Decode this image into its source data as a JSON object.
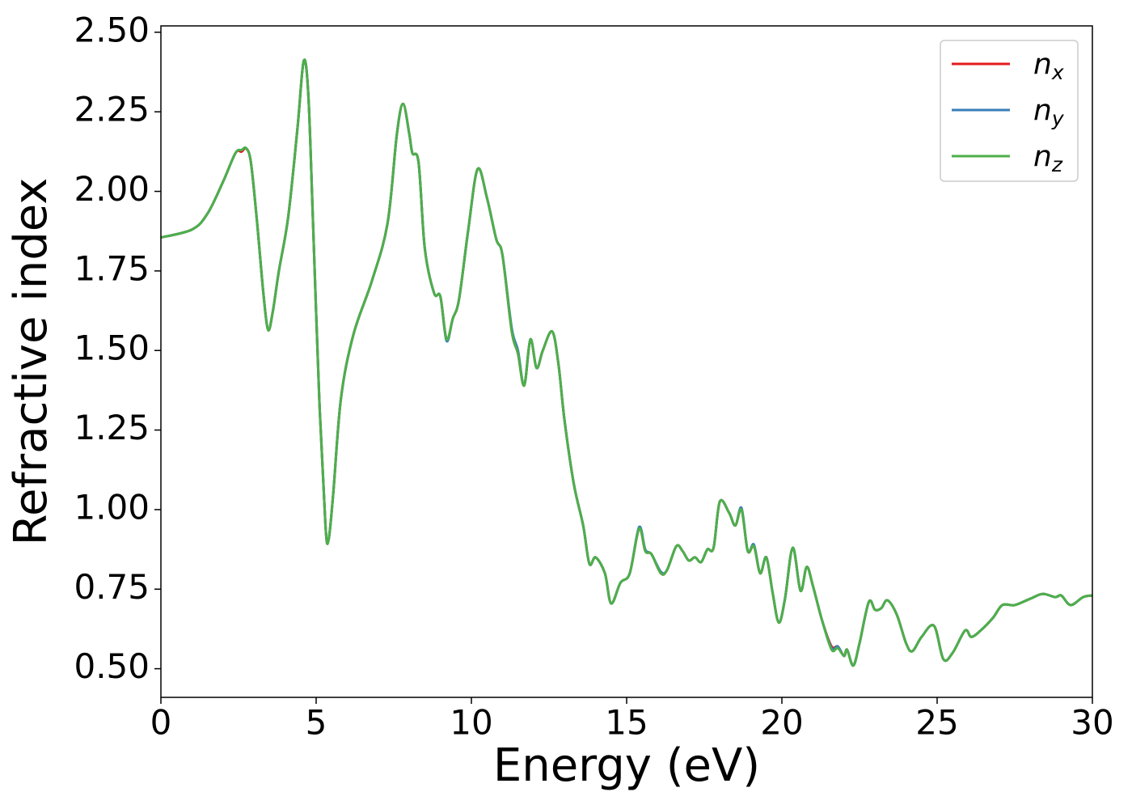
{
  "chart_data": {
    "type": "line",
    "xlabel": "Energy (eV)",
    "ylabel": "Refractive index",
    "x": [
      0,
      1,
      1.5,
      2,
      2.4,
      2.6,
      2.75,
      2.9,
      3.1,
      3.3,
      3.45,
      3.6,
      3.8,
      4.1,
      4.4,
      4.6,
      4.75,
      4.9,
      5.1,
      5.3,
      5.4,
      5.55,
      5.8,
      6.2,
      6.8,
      7.3,
      7.6,
      7.8,
      8,
      8.1,
      8.3,
      8.5,
      8.8,
      9,
      9.2,
      9.4,
      9.6,
      9.9,
      10.2,
      10.5,
      10.8,
      11,
      11.3,
      11.5,
      11.7,
      11.9,
      12.1,
      12.3,
      12.6,
      12.8,
      13,
      13.3,
      13.6,
      13.8,
      14,
      14.3,
      14.5,
      14.8,
      15.1,
      15.4,
      15.6,
      15.8,
      16.1,
      16.3,
      16.6,
      16.8,
      17,
      17.2,
      17.4,
      17.6,
      17.8,
      18,
      18.3,
      18.5,
      18.7,
      18.9,
      19.1,
      19.3,
      19.5,
      19.7,
      19.9,
      20.1,
      20.35,
      20.6,
      20.8,
      21,
      21.3,
      21.6,
      21.8,
      22,
      22.1,
      22.3,
      22.5,
      22.8,
      23,
      23.2,
      23.4,
      23.7,
      24,
      24.2,
      24.5,
      24.9,
      25.2,
      25.5,
      25.9,
      26.1,
      26.4,
      26.8,
      27.1,
      27.5,
      28,
      28.4,
      28.8,
      29,
      29.3,
      29.7,
      30
    ],
    "series": [
      {
        "name": "nx",
        "color": "#e41a1c",
        "values": [
          1.855,
          1.88,
          1.93,
          2.03,
          2.12,
          2.125,
          2.135,
          2.09,
          1.9,
          1.68,
          1.565,
          1.62,
          1.75,
          1.92,
          2.2,
          2.41,
          2.3,
          1.9,
          1.35,
          0.95,
          0.905,
          1.05,
          1.35,
          1.55,
          1.72,
          1.9,
          2.18,
          2.275,
          2.18,
          2.12,
          2.09,
          1.82,
          1.68,
          1.67,
          1.535,
          1.6,
          1.66,
          1.88,
          2.07,
          1.98,
          1.85,
          1.8,
          1.56,
          1.49,
          1.39,
          1.535,
          1.445,
          1.5,
          1.56,
          1.46,
          1.28,
          1.08,
          0.95,
          0.83,
          0.85,
          0.8,
          0.705,
          0.77,
          0.8,
          0.94,
          0.87,
          0.86,
          0.8,
          0.81,
          0.885,
          0.87,
          0.84,
          0.85,
          0.835,
          0.875,
          0.88,
          1.025,
          0.99,
          0.95,
          1.0,
          0.87,
          0.885,
          0.8,
          0.85,
          0.74,
          0.645,
          0.72,
          0.88,
          0.745,
          0.82,
          0.76,
          0.65,
          0.57,
          0.57,
          0.54,
          0.56,
          0.51,
          0.58,
          0.71,
          0.685,
          0.69,
          0.715,
          0.67,
          0.58,
          0.555,
          0.6,
          0.635,
          0.53,
          0.55,
          0.62,
          0.6,
          0.62,
          0.66,
          0.7,
          0.7,
          0.72,
          0.735,
          0.725,
          0.73,
          0.7,
          0.725,
          0.73
        ]
      },
      {
        "name": "ny",
        "color": "#377eb8",
        "values": [
          1.855,
          1.88,
          1.93,
          2.03,
          2.12,
          2.13,
          2.135,
          2.09,
          1.9,
          1.68,
          1.565,
          1.62,
          1.75,
          1.92,
          2.2,
          2.41,
          2.3,
          1.9,
          1.35,
          0.95,
          0.905,
          1.05,
          1.35,
          1.55,
          1.72,
          1.9,
          2.18,
          2.275,
          2.18,
          2.12,
          2.09,
          1.82,
          1.68,
          1.67,
          1.53,
          1.6,
          1.66,
          1.88,
          2.07,
          1.98,
          1.85,
          1.8,
          1.57,
          1.5,
          1.39,
          1.535,
          1.445,
          1.5,
          1.56,
          1.46,
          1.28,
          1.08,
          0.95,
          0.83,
          0.85,
          0.8,
          0.705,
          0.77,
          0.8,
          0.945,
          0.875,
          0.86,
          0.805,
          0.81,
          0.885,
          0.87,
          0.84,
          0.85,
          0.835,
          0.875,
          0.88,
          1.025,
          0.99,
          0.95,
          1.005,
          0.87,
          0.89,
          0.8,
          0.85,
          0.74,
          0.645,
          0.72,
          0.88,
          0.745,
          0.82,
          0.76,
          0.65,
          0.565,
          0.57,
          0.54,
          0.56,
          0.51,
          0.58,
          0.71,
          0.685,
          0.69,
          0.715,
          0.67,
          0.58,
          0.555,
          0.6,
          0.635,
          0.53,
          0.55,
          0.62,
          0.6,
          0.62,
          0.66,
          0.7,
          0.7,
          0.72,
          0.735,
          0.725,
          0.73,
          0.7,
          0.725,
          0.73
        ]
      },
      {
        "name": "nz",
        "color": "#4daf4a",
        "values": [
          1.855,
          1.88,
          1.93,
          2.03,
          2.12,
          2.13,
          2.135,
          2.09,
          1.9,
          1.68,
          1.565,
          1.62,
          1.75,
          1.92,
          2.2,
          2.41,
          2.3,
          1.9,
          1.35,
          0.95,
          0.905,
          1.05,
          1.35,
          1.55,
          1.72,
          1.9,
          2.18,
          2.275,
          2.18,
          2.12,
          2.09,
          1.82,
          1.68,
          1.67,
          1.535,
          1.6,
          1.66,
          1.88,
          2.07,
          1.98,
          1.85,
          1.8,
          1.56,
          1.49,
          1.39,
          1.535,
          1.445,
          1.5,
          1.56,
          1.46,
          1.28,
          1.08,
          0.95,
          0.83,
          0.85,
          0.8,
          0.705,
          0.77,
          0.8,
          0.94,
          0.87,
          0.86,
          0.8,
          0.81,
          0.885,
          0.87,
          0.84,
          0.85,
          0.835,
          0.875,
          0.88,
          1.025,
          0.99,
          0.95,
          1.0,
          0.87,
          0.885,
          0.8,
          0.85,
          0.74,
          0.645,
          0.72,
          0.88,
          0.745,
          0.82,
          0.76,
          0.65,
          0.56,
          0.565,
          0.54,
          0.56,
          0.51,
          0.58,
          0.71,
          0.685,
          0.69,
          0.715,
          0.67,
          0.58,
          0.555,
          0.6,
          0.635,
          0.53,
          0.55,
          0.62,
          0.6,
          0.62,
          0.66,
          0.7,
          0.7,
          0.72,
          0.735,
          0.725,
          0.73,
          0.7,
          0.725,
          0.73
        ]
      }
    ],
    "xlim": [
      0,
      30
    ],
    "xticks": [
      0,
      5,
      10,
      15,
      20,
      25,
      30
    ],
    "ylim": [
      0.41,
      2.52
    ],
    "yticks": [
      {
        "value": 0.5,
        "label": "0.50"
      },
      {
        "value": 0.75,
        "label": "0.75"
      },
      {
        "value": 1.0,
        "label": "1.00"
      },
      {
        "value": 1.25,
        "label": "1.25"
      },
      {
        "value": 1.5,
        "label": "1.50"
      },
      {
        "value": 1.75,
        "label": "1.75"
      },
      {
        "value": 2.0,
        "label": "2.00"
      },
      {
        "value": 2.25,
        "label": "2.25"
      },
      {
        "value": 2.5,
        "label": "2.50"
      }
    ],
    "grid": false,
    "legend": "upper right"
  }
}
